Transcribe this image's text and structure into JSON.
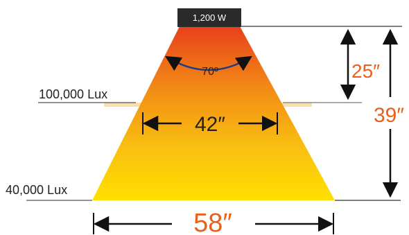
{
  "lamp": {
    "wattage": "1,200 W"
  },
  "beam": {
    "angle": "70º"
  },
  "levels": {
    "upper_lux": "100,000 Lux",
    "lower_lux": "40,000 Lux"
  },
  "dimensions": {
    "upper_width": "42″",
    "lower_width": "58″",
    "upper_distance": "25″",
    "lower_distance": "39″"
  },
  "colors": {
    "beam_top": "#e8401c",
    "beam_mid": "#f28a16",
    "beam_bottom": "#ffe000",
    "accent_text": "#e8611c",
    "lamp_box": "#2a2a2a"
  }
}
